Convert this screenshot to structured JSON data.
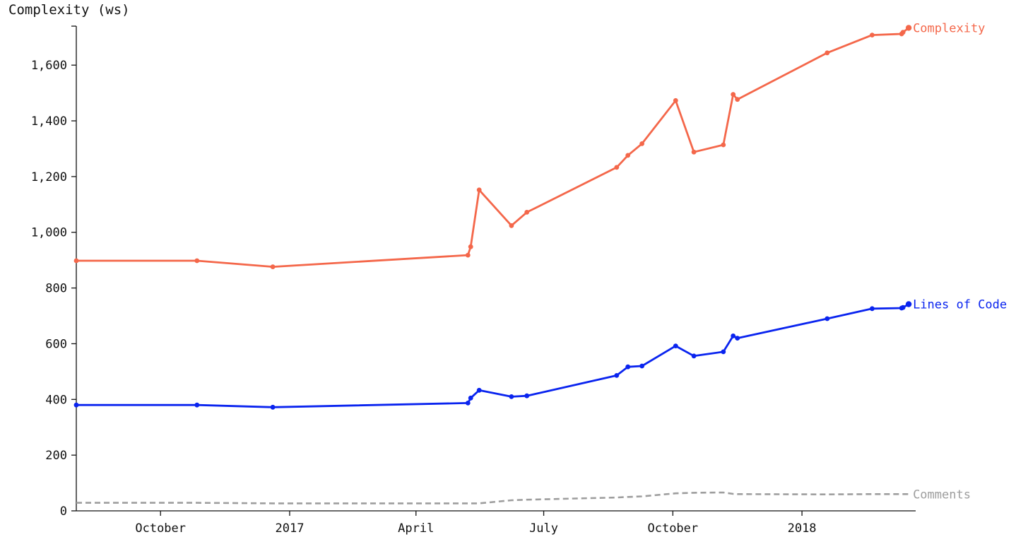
{
  "chart_data": {
    "type": "line",
    "ylabel": "Complexity (ws)",
    "ylim": [
      0,
      1740
    ],
    "yticks": [
      0,
      200,
      400,
      600,
      800,
      1000,
      1200,
      1400,
      1600
    ],
    "ytick_labels": [
      "0",
      "200",
      "400",
      "600",
      "800",
      "1,000",
      "1,200",
      "1,400",
      "1,600"
    ],
    "xlim": [
      "2016-08-02",
      "2018-03-23"
    ],
    "xticks": [
      {
        "date": "2016-10-01",
        "label": "October"
      },
      {
        "date": "2017-01-01",
        "label": "2017"
      },
      {
        "date": "2017-04-01",
        "label": "April"
      },
      {
        "date": "2017-07-01",
        "label": "July"
      },
      {
        "date": "2017-10-01",
        "label": "October"
      },
      {
        "date": "2018-01-01",
        "label": "2018"
      }
    ],
    "grid": false,
    "legend": "inline labels at line ends",
    "colors": {
      "complexity": "#f4674a",
      "loc": "#0a24ef",
      "comments": "#9e9e9e",
      "axis": "#111111"
    },
    "series": [
      {
        "name": "Complexity",
        "key": "complexity",
        "style": "solid",
        "markers": true,
        "points": [
          {
            "x": "2016-08-02",
            "y": 898
          },
          {
            "x": "2016-10-27",
            "y": 898
          },
          {
            "x": "2016-12-20",
            "y": 876
          },
          {
            "x": "2017-05-08",
            "y": 918
          },
          {
            "x": "2017-05-10",
            "y": 948
          },
          {
            "x": "2017-05-16",
            "y": 1152
          },
          {
            "x": "2017-06-08",
            "y": 1024
          },
          {
            "x": "2017-06-19",
            "y": 1072
          },
          {
            "x": "2017-08-22",
            "y": 1233
          },
          {
            "x": "2017-08-30",
            "y": 1276
          },
          {
            "x": "2017-09-09",
            "y": 1318
          },
          {
            "x": "2017-10-03",
            "y": 1473
          },
          {
            "x": "2017-10-16",
            "y": 1288
          },
          {
            "x": "2017-11-06",
            "y": 1314
          },
          {
            "x": "2017-11-13",
            "y": 1495
          },
          {
            "x": "2017-11-16",
            "y": 1477
          },
          {
            "x": "2018-01-19",
            "y": 1644
          },
          {
            "x": "2018-02-20",
            "y": 1708
          },
          {
            "x": "2018-03-13",
            "y": 1712
          },
          {
            "x": "2018-03-14",
            "y": 1718
          },
          {
            "x": "2018-03-18",
            "y": 1734
          }
        ]
      },
      {
        "name": "Lines of Code",
        "key": "loc",
        "style": "solid",
        "markers": true,
        "points": [
          {
            "x": "2016-08-02",
            "y": 380
          },
          {
            "x": "2016-10-27",
            "y": 380
          },
          {
            "x": "2016-12-20",
            "y": 372
          },
          {
            "x": "2017-05-08",
            "y": 387
          },
          {
            "x": "2017-05-10",
            "y": 405
          },
          {
            "x": "2017-05-16",
            "y": 433
          },
          {
            "x": "2017-06-08",
            "y": 410
          },
          {
            "x": "2017-06-19",
            "y": 413
          },
          {
            "x": "2017-08-22",
            "y": 486
          },
          {
            "x": "2017-08-30",
            "y": 517
          },
          {
            "x": "2017-09-09",
            "y": 520
          },
          {
            "x": "2017-10-03",
            "y": 592
          },
          {
            "x": "2017-10-16",
            "y": 556
          },
          {
            "x": "2017-11-06",
            "y": 571
          },
          {
            "x": "2017-11-13",
            "y": 628
          },
          {
            "x": "2017-11-16",
            "y": 620
          },
          {
            "x": "2018-01-19",
            "y": 690
          },
          {
            "x": "2018-02-20",
            "y": 726
          },
          {
            "x": "2018-03-13",
            "y": 728
          },
          {
            "x": "2018-03-14",
            "y": 730
          },
          {
            "x": "2018-03-18",
            "y": 742
          }
        ]
      },
      {
        "name": "Comments",
        "key": "comments",
        "style": "dashed",
        "markers": false,
        "points": [
          {
            "x": "2016-08-02",
            "y": 29
          },
          {
            "x": "2016-10-27",
            "y": 29
          },
          {
            "x": "2016-12-20",
            "y": 27
          },
          {
            "x": "2017-05-16",
            "y": 27
          },
          {
            "x": "2017-06-08",
            "y": 38
          },
          {
            "x": "2017-06-19",
            "y": 40
          },
          {
            "x": "2017-08-22",
            "y": 48
          },
          {
            "x": "2017-08-30",
            "y": 50
          },
          {
            "x": "2017-09-09",
            "y": 52
          },
          {
            "x": "2017-10-03",
            "y": 63
          },
          {
            "x": "2017-10-16",
            "y": 65
          },
          {
            "x": "2017-11-06",
            "y": 66
          },
          {
            "x": "2017-11-13",
            "y": 61
          },
          {
            "x": "2017-11-16",
            "y": 60
          },
          {
            "x": "2018-01-19",
            "y": 59
          },
          {
            "x": "2018-02-20",
            "y": 60
          },
          {
            "x": "2018-03-18",
            "y": 60
          }
        ]
      }
    ]
  }
}
